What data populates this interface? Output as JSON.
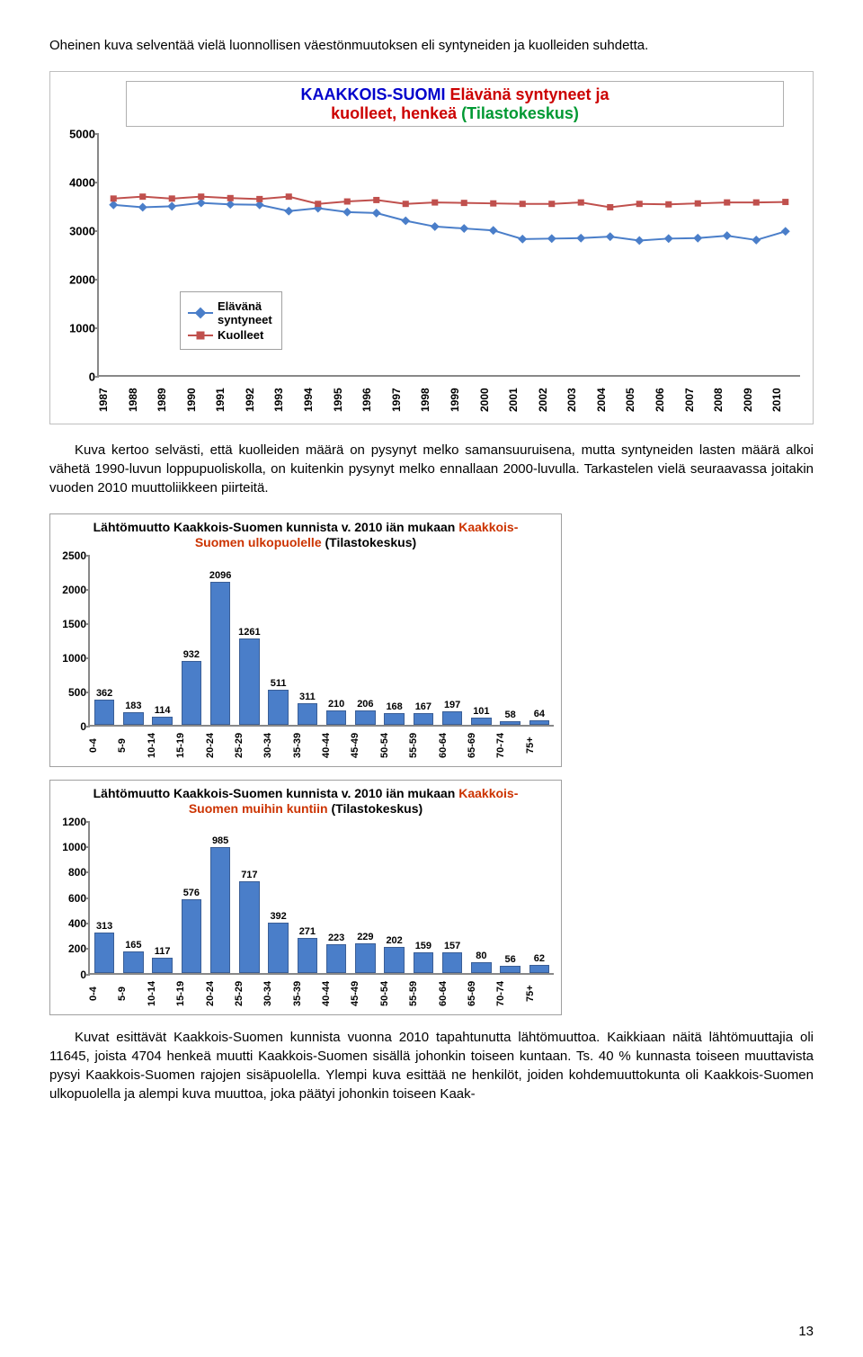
{
  "para1": "Oheinen kuva selventää vielä luonnollisen väestönmuutoksen eli syntyneiden ja kuolleiden suhdetta.",
  "para2": "Kuva kertoo selvästi, että kuolleiden määrä on pysynyt melko samansuuruisena, mutta syntyneiden lasten määrä alkoi vähetä 1990-luvun loppupuoliskolla, on kuitenkin pysynyt melko ennallaan 2000-luvulla. Tarkastelen vielä seuraavassa joitakin vuoden 2010 muuttoliikkeen piirteitä.",
  "para3": "Kuvat esittävät Kaakkois-Suomen kunnista vuonna 2010 tapahtunutta lähtömuuttoa. Kaikkiaan näitä lähtömuuttajia oli 11645, joista 4704 henkeä muutti Kaakkois-Suomen sisällä johonkin toiseen kuntaan. Ts. 40 % kunnasta toiseen muuttavista pysyi Kaakkois-Suomen rajojen sisäpuolella. Ylempi kuva esittää ne henkilöt, joiden kohdemuuttokunta oli Kaakkois-Suomen ulkopuolella ja alempi kuva muuttoa, joka päätyi johonkin toiseen Kaak-",
  "pageNumber": "13",
  "lineChart": {
    "title_a": "KAAKKOIS-SUOMI",
    "title_b": " Elävänä syntyneet ja",
    "title_c": "kuolleet, henkeä",
    "title_d": " (Tilastokeskus)",
    "yMax": 5000,
    "yTicks": [
      0,
      1000,
      2000,
      3000,
      4000,
      5000
    ],
    "xLabels": [
      "1987",
      "1988",
      "1989",
      "1990",
      "1991",
      "1992",
      "1993",
      "1994",
      "1995",
      "1996",
      "1997",
      "1998",
      "1999",
      "2000",
      "2001",
      "2002",
      "2003",
      "2004",
      "2005",
      "2006",
      "2007",
      "2008",
      "2009",
      "2010"
    ],
    "legend": {
      "s1": "Elävänä syntyneet",
      "s2": "Kuolleet",
      "s1_line_break": "Elävänä",
      "s1_line_break2": "syntyneet"
    },
    "colors": {
      "s1": "#4a7ec9",
      "s2": "#c0504d"
    },
    "s1": [
      3530,
      3480,
      3500,
      3570,
      3540,
      3530,
      3400,
      3460,
      3380,
      3360,
      3200,
      3080,
      3040,
      3000,
      2820,
      2830,
      2840,
      2870,
      2790,
      2830,
      2840,
      2890,
      2800,
      2980
    ],
    "s2": [
      3660,
      3700,
      3660,
      3700,
      3670,
      3650,
      3700,
      3550,
      3600,
      3630,
      3550,
      3580,
      3570,
      3560,
      3550,
      3550,
      3580,
      3480,
      3550,
      3540,
      3560,
      3580,
      3580,
      3590
    ]
  },
  "barChart1": {
    "title_a": "Lähtömuutto Kaakkois-Suomen kunnista v. 2010 iän mukaan ",
    "title_hl": "Kaakkois-Suomen ulkopuolelle",
    "title_b": " (Tilastokeskus)",
    "height": 190,
    "yMax": 2500,
    "yTicks": [
      0,
      500,
      1000,
      1500,
      2000,
      2500
    ],
    "xLabels": [
      "0-4",
      "5-9",
      "10-14",
      "15-19",
      "20-24",
      "25-29",
      "30-34",
      "35-39",
      "40-44",
      "45-49",
      "50-54",
      "55-59",
      "60-64",
      "65-69",
      "70-74",
      "75+"
    ],
    "values": [
      362,
      183,
      114,
      932,
      2096,
      1261,
      511,
      311,
      210,
      206,
      168,
      167,
      197,
      101,
      58,
      64
    ],
    "barColor": "#4a7ec9"
  },
  "barChart2": {
    "title_a": "Lähtömuutto Kaakkois-Suomen kunnista v. 2010 iän mukaan ",
    "title_hl": "Kaakkois-Suomen muihin kuntiin",
    "title_b": " (Tilastokeskus)",
    "height": 170,
    "yMax": 1200,
    "yTicks": [
      0,
      200,
      400,
      600,
      800,
      1000,
      1200
    ],
    "xLabels": [
      "0-4",
      "5-9",
      "10-14",
      "15-19",
      "20-24",
      "25-29",
      "30-34",
      "35-39",
      "40-44",
      "45-49",
      "50-54",
      "55-59",
      "60-64",
      "65-69",
      "70-74",
      "75+"
    ],
    "values": [
      313,
      165,
      117,
      576,
      985,
      717,
      392,
      271,
      223,
      229,
      202,
      159,
      157,
      80,
      56,
      62
    ],
    "barColor": "#4a7ec9"
  }
}
